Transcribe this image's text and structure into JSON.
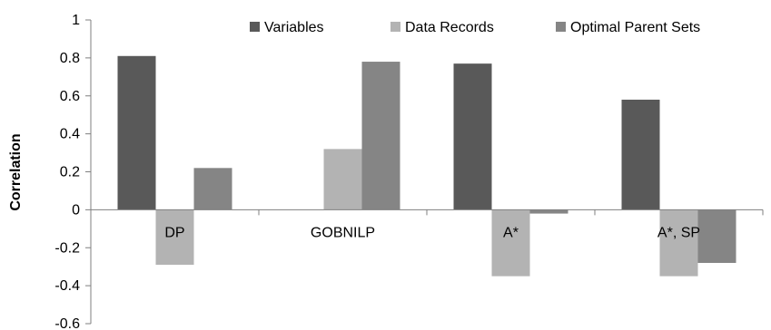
{
  "chart_data": {
    "type": "bar",
    "title": "",
    "xlabel": "",
    "ylabel": "Correlation",
    "ylim": [
      -0.6,
      1
    ],
    "yticks": [
      -0.6,
      -0.4,
      -0.2,
      0,
      0.2,
      0.4,
      0.6,
      0.8,
      1
    ],
    "ytick_labels": [
      "-0.6",
      "-0.4",
      "-0.2",
      "0",
      "0.2",
      "0.4",
      "0.6",
      "0.8",
      "1"
    ],
    "categories": [
      "DP",
      "GOBNILP",
      "A*",
      "A*, SP"
    ],
    "series": [
      {
        "name": "Variables",
        "color": "#595959",
        "values": [
          0.81,
          0.0,
          0.77,
          0.58
        ]
      },
      {
        "name": "Data Records",
        "color": "#b3b3b3",
        "values": [
          -0.29,
          0.32,
          -0.35,
          -0.35
        ]
      },
      {
        "name": "Optimal Parent Sets",
        "color": "#858585",
        "values": [
          0.22,
          0.78,
          -0.02,
          -0.28
        ]
      }
    ],
    "grid": false,
    "legend": "top-right"
  }
}
